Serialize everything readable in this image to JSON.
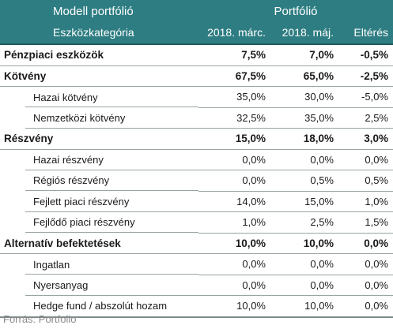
{
  "header": {
    "left_top": "Modell portfólió",
    "group_top": "Portfólió",
    "left_bottom": "Eszközkategória",
    "col1": "2018. márc.",
    "col2": "2018. máj.",
    "col3": "Eltérés"
  },
  "rows": [
    {
      "label": "Pénzpiaci eszközök",
      "v1": "7,5%",
      "v2": "7,0%",
      "v3": "-0,5%",
      "kind": "cat"
    },
    {
      "label": "Kötvény",
      "v1": "67,5%",
      "v2": "65,0%",
      "v3": "-2,5%",
      "kind": "cat"
    },
    {
      "label": "Hazai kötvény",
      "v1": "35,0%",
      "v2": "30,0%",
      "v3": "-5,0%",
      "kind": "sub"
    },
    {
      "label": "Nemzetközi kötvény",
      "v1": "32,5%",
      "v2": "35,0%",
      "v3": "2,5%",
      "kind": "sub"
    },
    {
      "label": "Részvény",
      "v1": "15,0%",
      "v2": "18,0%",
      "v3": "3,0%",
      "kind": "cat"
    },
    {
      "label": "Hazai részvény",
      "v1": "0,0%",
      "v2": "0,0%",
      "v3": "0,0%",
      "kind": "sub"
    },
    {
      "label": "Régiós részvény",
      "v1": "0,0%",
      "v2": "0,5%",
      "v3": "0,5%",
      "kind": "sub"
    },
    {
      "label": "Fejlett piaci részvény",
      "v1": "14,0%",
      "v2": "15,0%",
      "v3": "1,0%",
      "kind": "sub"
    },
    {
      "label": "Fejlődő piaci részvény",
      "v1": "1,0%",
      "v2": "2,5%",
      "v3": "1,5%",
      "kind": "sub"
    },
    {
      "label": "Alternatív befektetések",
      "v1": "10,0%",
      "v2": "10,0%",
      "v3": "0,0%",
      "kind": "cat"
    },
    {
      "label": "Ingatlan",
      "v1": "0,0%",
      "v2": "0,0%",
      "v3": "0,0%",
      "kind": "sub"
    },
    {
      "label": "Nyersanyag",
      "v1": "0,0%",
      "v2": "0,0%",
      "v3": "0,0%",
      "kind": "sub"
    },
    {
      "label": "Hedge fund / abszolút hozam",
      "v1": "10,0%",
      "v2": "10,0%",
      "v3": "0,0%",
      "kind": "sub"
    }
  ],
  "source": "Forrás: Portfolio",
  "colors": {
    "header_bg": "#2e7d82",
    "header_text": "#ffffff",
    "rule": "#9aa3a6",
    "source_text": "#8a8a8a"
  }
}
